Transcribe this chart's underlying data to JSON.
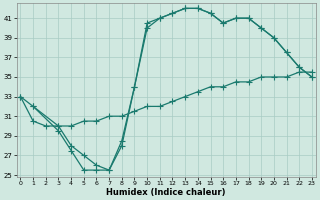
{
  "xlabel": "Humidex (Indice chaleur)",
  "bg_color": "#d0e8e0",
  "line_color": "#1a7a6e",
  "grid_color": "#a8ccc4",
  "xlim": [
    -0.3,
    23.3
  ],
  "ylim": [
    24.8,
    42.5
  ],
  "xticks": [
    0,
    1,
    2,
    3,
    4,
    5,
    6,
    7,
    8,
    9,
    10,
    11,
    12,
    13,
    14,
    15,
    16,
    17,
    18,
    19,
    20,
    21,
    22,
    23
  ],
  "yticks": [
    25,
    27,
    29,
    31,
    33,
    35,
    37,
    39,
    41
  ],
  "line_upper_x": [
    0,
    1,
    3,
    4,
    5,
    6,
    7,
    8,
    9,
    10,
    11,
    12,
    13,
    14,
    15,
    16,
    17,
    18,
    19,
    20,
    21,
    22,
    23
  ],
  "line_upper_y": [
    33,
    32,
    30,
    28,
    27,
    26,
    25.5,
    28,
    34,
    40,
    41,
    41.5,
    42,
    42,
    41.5,
    40.5,
    41,
    41,
    40,
    39,
    37.5,
    36,
    35
  ],
  "line_diag_x": [
    0,
    1,
    2,
    3,
    4,
    5,
    6,
    7,
    8,
    9,
    10,
    11,
    12,
    13,
    14,
    15,
    16,
    17,
    18,
    19,
    20,
    21,
    22,
    23
  ],
  "line_diag_y": [
    33,
    30.5,
    30,
    30,
    30,
    30.5,
    30.5,
    31,
    31,
    31.5,
    32,
    32,
    32.5,
    33,
    33.5,
    34,
    34,
    34.5,
    34.5,
    35,
    35,
    35,
    35.5,
    35.5
  ],
  "line_lower_x": [
    1,
    3,
    4,
    5,
    6,
    7,
    8,
    9,
    10,
    11,
    12,
    13,
    14,
    15,
    16,
    17,
    18,
    19,
    20,
    21,
    22,
    23
  ],
  "line_lower_y": [
    32,
    29.5,
    27.5,
    25.5,
    25.5,
    25.5,
    28.5,
    34,
    40.5,
    41,
    41.5,
    42,
    42,
    41.5,
    40.5,
    41,
    41,
    40,
    39,
    37.5,
    36,
    35
  ]
}
